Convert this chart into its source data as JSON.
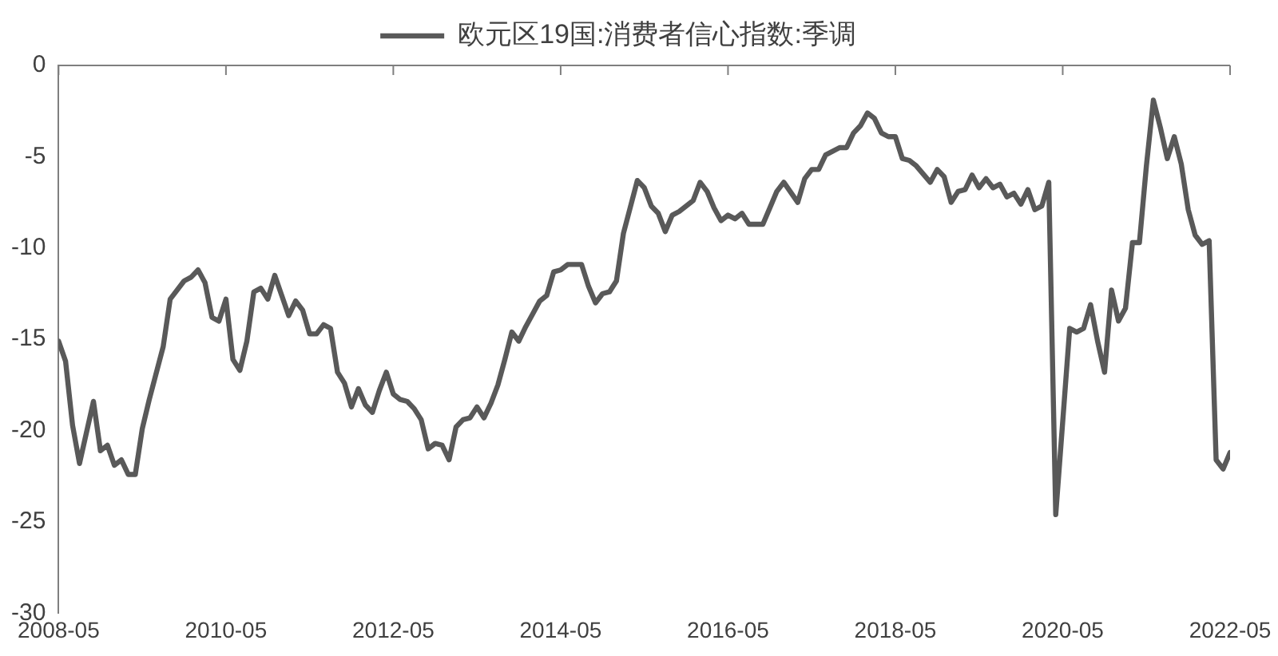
{
  "chart_data": {
    "type": "line",
    "legend": "top",
    "grid": false,
    "marker": "none",
    "line_style": "solid",
    "xlim": [
      "2008-05",
      "2022-05"
    ],
    "xticks": [
      "2008-05",
      "2010-05",
      "2012-05",
      "2014-05",
      "2016-05",
      "2018-05",
      "2020-05",
      "2022-05"
    ],
    "ylim": [
      -30,
      0
    ],
    "yticks": [
      -30,
      -25,
      -20,
      -15,
      -10,
      -5,
      0
    ],
    "series": [
      {
        "name": "欧元区19国:消费者信心指数:季调",
        "color": "#595959",
        "x": [
          "2008-05",
          "2008-06",
          "2008-07",
          "2008-08",
          "2008-10",
          "2008-11",
          "2008-12",
          "2009-01",
          "2009-02",
          "2009-03",
          "2009-04",
          "2009-05",
          "2009-06",
          "2009-08",
          "2009-09",
          "2009-11",
          "2009-12",
          "2010-01",
          "2010-02",
          "2010-03",
          "2010-04",
          "2010-05",
          "2010-06",
          "2010-07",
          "2010-08",
          "2010-09",
          "2010-10",
          "2010-11",
          "2010-12",
          "2011-01",
          "2011-02",
          "2011-03",
          "2011-04",
          "2011-05",
          "2011-06",
          "2011-07",
          "2011-08",
          "2011-09",
          "2011-10",
          "2011-11",
          "2011-12",
          "2012-01",
          "2012-02",
          "2012-03",
          "2012-04",
          "2012-05",
          "2012-06",
          "2012-07",
          "2012-08",
          "2012-09",
          "2012-10",
          "2012-11",
          "2012-12",
          "2013-01",
          "2013-02",
          "2013-03",
          "2013-04",
          "2013-05",
          "2013-06",
          "2013-07",
          "2013-08",
          "2013-09",
          "2013-10",
          "2013-11",
          "2013-12",
          "2014-01",
          "2014-02",
          "2014-03",
          "2014-04",
          "2014-05",
          "2014-06",
          "2014-08",
          "2014-09",
          "2014-10",
          "2014-11",
          "2014-12",
          "2015-01",
          "2015-02",
          "2015-04",
          "2015-05",
          "2015-06",
          "2015-07",
          "2015-08",
          "2015-09",
          "2015-10",
          "2015-12",
          "2016-01",
          "2016-02",
          "2016-03",
          "2016-04",
          "2016-05",
          "2016-06",
          "2016-07",
          "2016-08",
          "2016-10",
          "2016-11",
          "2016-12",
          "2017-01",
          "2017-03",
          "2017-04",
          "2017-05",
          "2017-06",
          "2017-07",
          "2017-09",
          "2017-10",
          "2017-11",
          "2017-12",
          "2018-01",
          "2018-02",
          "2018-03",
          "2018-04",
          "2018-05",
          "2018-06",
          "2018-07",
          "2018-08",
          "2018-10",
          "2018-11",
          "2018-12",
          "2019-01",
          "2019-02",
          "2019-03",
          "2019-04",
          "2019-05",
          "2019-06",
          "2019-07",
          "2019-08",
          "2019-09",
          "2019-10",
          "2019-11",
          "2019-12",
          "2020-01",
          "2020-02",
          "2020-03",
          "2020-04",
          "2020-06",
          "2020-07",
          "2020-08",
          "2020-09",
          "2020-10",
          "2020-11",
          "2020-12",
          "2021-01",
          "2021-02",
          "2021-03",
          "2021-04",
          "2021-05",
          "2021-06",
          "2021-07",
          "2021-08",
          "2021-09",
          "2021-10",
          "2021-11",
          "2021-12",
          "2022-01",
          "2022-02",
          "2022-03",
          "2022-04",
          "2022-05"
        ],
        "values": [
          -15.1,
          -16.2,
          -19.7,
          -21.8,
          -18.4,
          -21.1,
          -20.8,
          -21.9,
          -21.6,
          -22.4,
          -22.4,
          -19.9,
          -18.3,
          -15.4,
          -12.8,
          -11.8,
          -11.6,
          -11.2,
          -11.9,
          -13.8,
          -14.0,
          -12.8,
          -16.1,
          -16.7,
          -15.1,
          -12.4,
          -12.2,
          -12.8,
          -11.5,
          -12.6,
          -13.7,
          -12.9,
          -13.4,
          -14.7,
          -14.7,
          -14.2,
          -14.4,
          -16.8,
          -17.4,
          -18.7,
          -17.7,
          -18.6,
          -19.0,
          -17.8,
          -16.8,
          -18.0,
          -18.3,
          -18.4,
          -18.8,
          -19.4,
          -21.0,
          -20.7,
          -20.8,
          -21.6,
          -19.8,
          -19.4,
          -19.3,
          -18.7,
          -19.3,
          -18.5,
          -17.5,
          -16.1,
          -14.6,
          -15.1,
          -14.3,
          -13.6,
          -12.9,
          -12.6,
          -11.3,
          -11.2,
          -10.9,
          -10.9,
          -12.1,
          -13.0,
          -12.5,
          -12.4,
          -11.8,
          -9.2,
          -6.3,
          -6.7,
          -7.7,
          -8.1,
          -9.1,
          -8.2,
          -8.0,
          -7.4,
          -6.4,
          -6.9,
          -7.8,
          -8.5,
          -8.2,
          -8.4,
          -8.1,
          -8.7,
          -8.7,
          -7.8,
          -6.9,
          -6.4,
          -7.5,
          -6.2,
          -5.7,
          -5.7,
          -4.9,
          -4.5,
          -4.5,
          -3.7,
          -3.3,
          -2.6,
          -2.9,
          -3.7,
          -3.9,
          -3.9,
          -5.1,
          -5.2,
          -5.5,
          -6.4,
          -5.7,
          -6.1,
          -7.5,
          -6.9,
          -6.8,
          -6.0,
          -6.7,
          -6.2,
          -6.7,
          -6.5,
          -7.2,
          -7.0,
          -7.6,
          -6.8,
          -7.9,
          -7.7,
          -6.4,
          -24.6,
          -14.4,
          -14.6,
          -14.4,
          -13.1,
          -15.1,
          -16.8,
          -12.3,
          -14.0,
          -13.3,
          -9.7,
          -9.7,
          -5.5,
          -1.9,
          -3.4,
          -5.1,
          -3.9,
          -5.4,
          -7.9,
          -9.3,
          -9.8,
          -9.6,
          -21.6,
          -22.1,
          -21.2
        ]
      }
    ]
  }
}
